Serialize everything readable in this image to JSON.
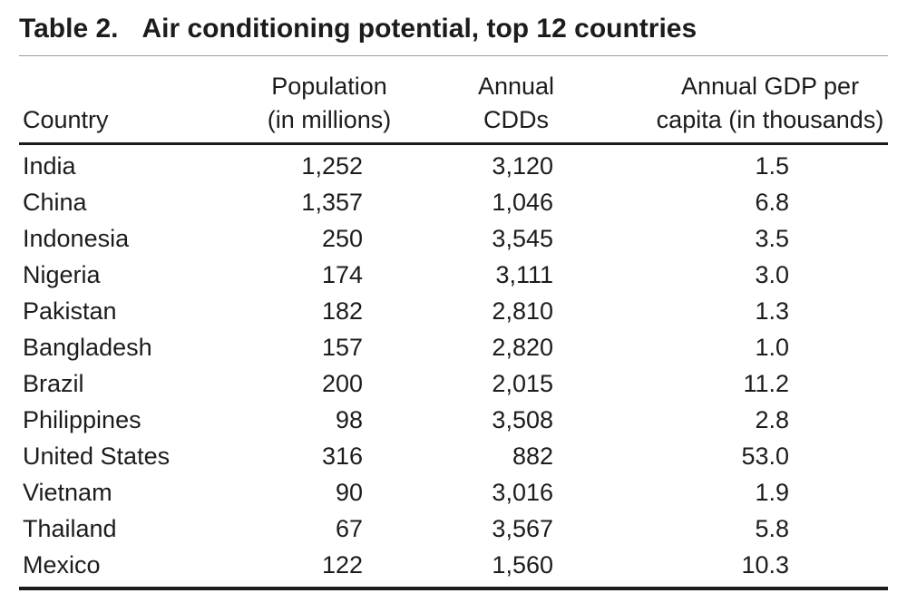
{
  "table": {
    "title_label": "Table 2.",
    "title_text": "Air conditioning potential, top 12 countries",
    "header": {
      "country_line2": "Country",
      "population_line1": "Population",
      "population_line2": "(in millions)",
      "cdd_line1": "Annual",
      "cdd_line2": "CDDs",
      "gdp_line1": "Annual GDP per",
      "gdp_line2": "capita (in thousands)"
    },
    "rows": [
      {
        "country": "India",
        "population": "1,252",
        "cdd": "3,120",
        "gdp": "1.5"
      },
      {
        "country": "China",
        "population": "1,357",
        "cdd": "1,046",
        "gdp": "6.8"
      },
      {
        "country": "Indonesia",
        "population": "250",
        "cdd": "3,545",
        "gdp": "3.5"
      },
      {
        "country": "Nigeria",
        "population": "174",
        "cdd": "3,111",
        "gdp": "3.0"
      },
      {
        "country": "Pakistan",
        "population": "182",
        "cdd": "2,810",
        "gdp": "1.3"
      },
      {
        "country": "Bangladesh",
        "population": "157",
        "cdd": "2,820",
        "gdp": "1.0"
      },
      {
        "country": "Brazil",
        "population": "200",
        "cdd": "2,015",
        "gdp": "11.2"
      },
      {
        "country": "Philippines",
        "population": "98",
        "cdd": "3,508",
        "gdp": "2.8"
      },
      {
        "country": "United States",
        "population": "316",
        "cdd": "882",
        "gdp": "53.0"
      },
      {
        "country": "Vietnam",
        "population": "90",
        "cdd": "3,016",
        "gdp": "1.9"
      },
      {
        "country": "Thailand",
        "population": "67",
        "cdd": "3,567",
        "gdp": "5.8"
      },
      {
        "country": "Mexico",
        "population": "122",
        "cdd": "1,560",
        "gdp": "10.3"
      }
    ]
  },
  "colors": {
    "text": "#1c1c1c",
    "thick_rule": "#1c1c1c",
    "title_hairline": "#9a9a9a",
    "background": "#ffffff"
  }
}
